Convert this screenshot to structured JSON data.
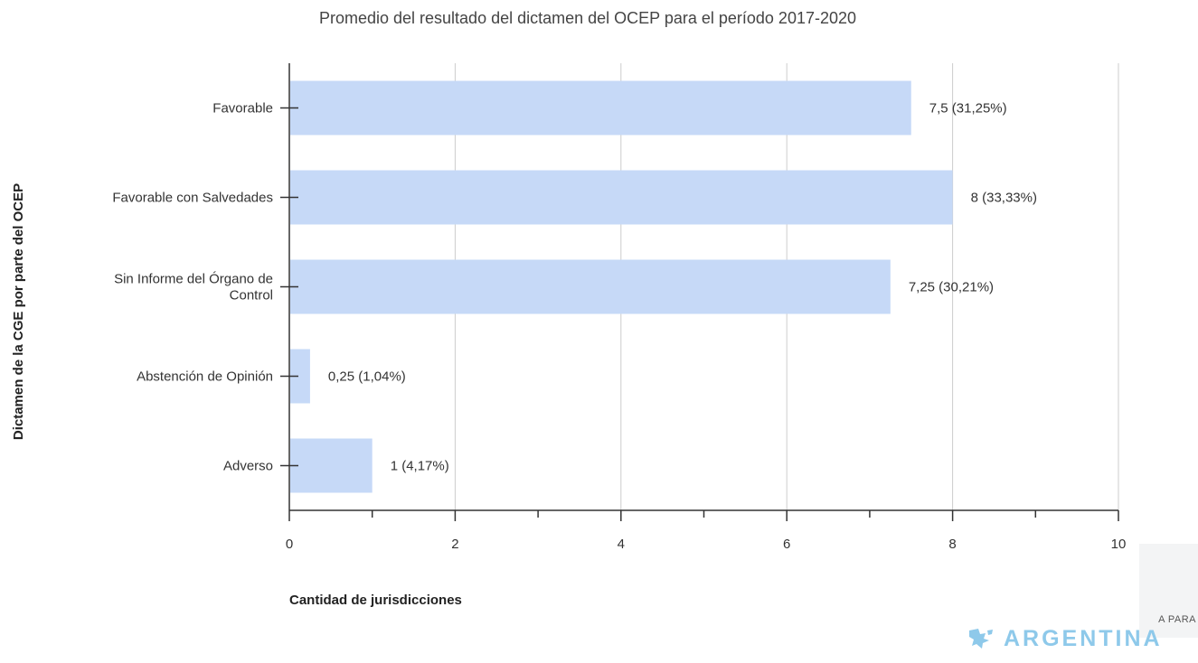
{
  "colors": {
    "bar": "#c6d9f7",
    "grid": "#cccccc",
    "axis": "#333333",
    "text": "#333333",
    "logo": "#8ec9ea"
  },
  "logo": {
    "small_text": "A PARA",
    "main_text": "ARGENTINA",
    "icon": "argentina-map-logo-icon"
  },
  "chart_data": {
    "type": "bar",
    "orientation": "horizontal",
    "title": "Promedio del resultado del dictamen del OCEP para el período 2017-2020",
    "xlabel": "Cantidad de jurisdicciones",
    "ylabel": "Dictamen de la CGE por parte del OCEP",
    "xlim": [
      0,
      10
    ],
    "x_ticks": [
      0,
      2,
      4,
      6,
      8,
      10
    ],
    "x_minor_ticks": [
      1,
      3,
      5,
      7,
      9
    ],
    "grid": true,
    "categories": [
      [
        "Favorable"
      ],
      [
        "Favorable con Salvedades"
      ],
      [
        "Sin Informe del Órgano de",
        "Control"
      ],
      [
        "Abstención de Opinión"
      ],
      [
        "Adverso"
      ]
    ],
    "values": [
      7.5,
      8,
      7.25,
      0.25,
      1
    ],
    "data_labels": [
      "7,5 (31,25%)",
      "8 (33,33%)",
      "7,25 (30,21%)",
      "0,25 (1,04%)",
      "1 (4,17%)"
    ]
  }
}
